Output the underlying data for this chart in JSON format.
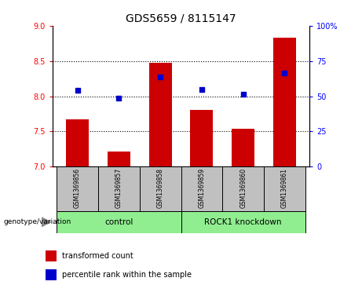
{
  "title": "GDS5659 / 8115147",
  "samples": [
    "GSM1369856",
    "GSM1369857",
    "GSM1369858",
    "GSM1369859",
    "GSM1369860",
    "GSM1369861"
  ],
  "red_values": [
    7.67,
    7.22,
    8.47,
    7.8,
    7.54,
    8.83
  ],
  "blue_values": [
    8.08,
    7.97,
    8.27,
    8.1,
    8.03,
    8.33
  ],
  "ylim_left": [
    7.0,
    9.0
  ],
  "ylim_right": [
    0,
    100
  ],
  "yticks_left": [
    7.0,
    7.5,
    8.0,
    8.5,
    9.0
  ],
  "yticks_right": [
    0,
    25,
    50,
    75,
    100
  ],
  "bar_color": "#CC0000",
  "dot_color": "#0000CC",
  "bar_bottom": 7.0,
  "label_bg_color": "#C0C0C0",
  "green_color": "#90EE90",
  "legend_red_label": "transformed count",
  "legend_blue_label": "percentile rank within the sample",
  "genotype_label": "genotype/variation",
  "control_label": "control",
  "knockdown_label": "ROCK1 knockdown",
  "title_fontsize": 10,
  "tick_fontsize": 7,
  "label_fontsize": 5.5,
  "group_fontsize": 7.5,
  "legend_fontsize": 7
}
